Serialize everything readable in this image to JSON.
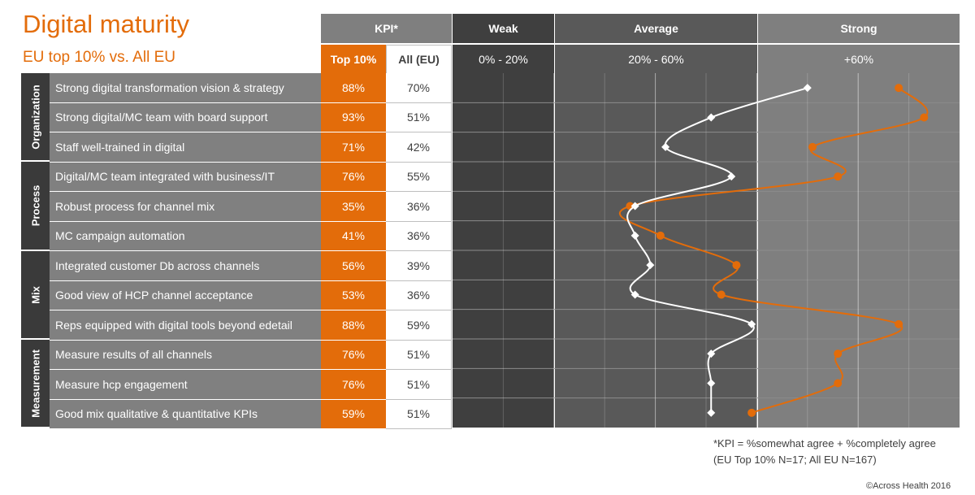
{
  "title": "Digital maturity",
  "subtitle": "EU top 10% vs. All EU",
  "header": {
    "kpi": "KPI*",
    "top": "Top 10%",
    "all": "All (EU)",
    "weak": "Weak",
    "weak_range": "0% - 20%",
    "average": "Average",
    "average_range": "20% - 60%",
    "strong": "Strong",
    "strong_range": "+60%"
  },
  "groups": [
    "Organization",
    "Process",
    "Mix",
    "Measurement"
  ],
  "rows": [
    {
      "label": "Strong digital transformation vision & strategy",
      "top": "88%",
      "all": "70%"
    },
    {
      "label": "Strong digital/MC team with board support",
      "top": "93%",
      "all": "51%"
    },
    {
      "label": "Staff well-trained in digital",
      "top": "71%",
      "all": "42%"
    },
    {
      "label": "Digital/MC team integrated with business/IT",
      "top": "76%",
      "all": "55%"
    },
    {
      "label": "Robust process for channel mix",
      "top": "35%",
      "all": "36%"
    },
    {
      "label": "MC campaign automation",
      "top": "41%",
      "all": "36%"
    },
    {
      "label": "Integrated customer Db across channels",
      "top": "56%",
      "all": "39%"
    },
    {
      "label": "Good view of HCP channel acceptance",
      "top": "53%",
      "all": "36%"
    },
    {
      "label": "Reps equipped with digital tools beyond edetail",
      "top": "88%",
      "all": "59%"
    },
    {
      "label": "Measure results of all channels",
      "top": "76%",
      "all": "51%"
    },
    {
      "label": "Measure hcp engagement",
      "top": "76%",
      "all": "51%"
    },
    {
      "label": "Good mix qualitative & quantitative KPIs",
      "top": "59%",
      "all": "51%"
    }
  ],
  "footnote1": "*KPI = %somewhat agree + %completely agree",
  "footnote2": "(EU Top 10% N=17; All EU N=167)",
  "copyright": "©Across Health 2016",
  "colors": {
    "accent": "#e36c0a",
    "all_eu": "#ffffff",
    "weak_zone": "#3f3f3f",
    "average_zone": "#595959",
    "strong_zone": "#7f7f7f"
  },
  "chart_data": {
    "type": "line",
    "x_axis": "category",
    "y_axis_percent": true,
    "zones": [
      {
        "name": "Weak",
        "range": [
          0,
          20
        ]
      },
      {
        "name": "Average",
        "range": [
          20,
          60
        ]
      },
      {
        "name": "Strong",
        "range": [
          60,
          100
        ]
      }
    ],
    "xlim": [
      0,
      100
    ],
    "categories": [
      "Strong digital transformation vision & strategy",
      "Strong digital/MC team with board support",
      "Staff well-trained in digital",
      "Digital/MC team integrated with business/IT",
      "Robust process for channel mix",
      "MC campaign automation",
      "Integrated customer Db across channels",
      "Good view of HCP channel acceptance",
      "Reps equipped with digital tools beyond edetail",
      "Measure results of all channels",
      "Measure hcp engagement",
      "Good mix qualitative & quantitative KPIs"
    ],
    "series": [
      {
        "name": "Top 10%",
        "color": "#e36c0a",
        "marker": "circle",
        "values": [
          88,
          93,
          71,
          76,
          35,
          41,
          56,
          53,
          88,
          76,
          76,
          59
        ]
      },
      {
        "name": "All (EU)",
        "color": "#ffffff",
        "marker": "diamond",
        "values": [
          70,
          51,
          42,
          55,
          36,
          36,
          39,
          36,
          59,
          51,
          51,
          51
        ]
      }
    ]
  }
}
